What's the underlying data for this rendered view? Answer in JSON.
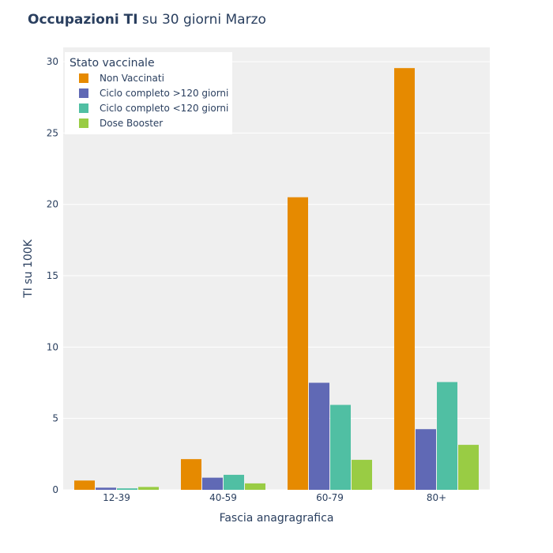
{
  "chart_data": {
    "type": "bar",
    "title_bold": "Occupazioni TI",
    "title_rest": " su 30 giorni Marzo",
    "xlabel": "Fascia anagragrafica",
    "ylabel": "TI su 100K",
    "ylim": [
      0,
      31
    ],
    "yticks": [
      0,
      5,
      10,
      15,
      20,
      25,
      30
    ],
    "grid": true,
    "legend": {
      "title": "Stato vaccinale",
      "placement": "top-left"
    },
    "categories": [
      "12-39",
      "40-59",
      "60-79",
      "80+"
    ],
    "series": [
      {
        "name": "Non Vaccinati",
        "color": "#E68A00",
        "values": [
          0.65,
          2.15,
          20.5,
          29.55
        ]
      },
      {
        "name": "Ciclo completo >120 giorni",
        "color": "#6069B5",
        "values": [
          0.15,
          0.85,
          7.5,
          4.25
        ]
      },
      {
        "name": "Ciclo completo <120 giorni",
        "color": "#50BFA3",
        "values": [
          0.1,
          1.05,
          5.95,
          7.55
        ]
      },
      {
        "name": "Dose Booster",
        "color": "#99CC44",
        "values": [
          0.2,
          0.45,
          2.1,
          3.15
        ]
      }
    ]
  }
}
